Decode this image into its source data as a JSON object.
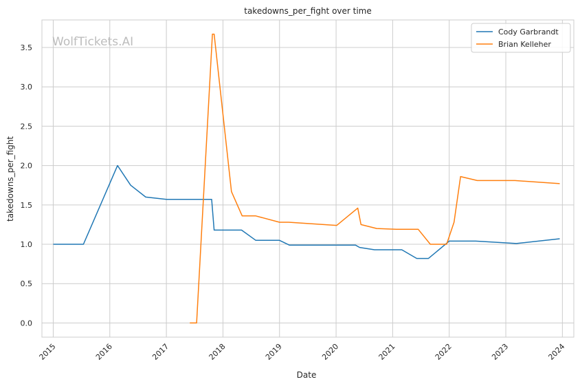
{
  "chart_data": {
    "type": "line",
    "title": "takedowns_per_fight over time",
    "xlabel": "Date",
    "ylabel": "takedowns_per_fight",
    "watermark": "WolfTickets.AI",
    "x_ticks": [
      "2015",
      "2016",
      "2017",
      "2018",
      "2019",
      "2020",
      "2021",
      "2022",
      "2023",
      "2024"
    ],
    "y_ticks": [
      "0.0",
      "0.5",
      "1.0",
      "1.5",
      "2.0",
      "2.5",
      "3.0",
      "3.5"
    ],
    "xlim": [
      "2014-10-20",
      "2024-03-15"
    ],
    "ylim": [
      -0.18,
      3.85
    ],
    "grid": true,
    "legend_position": "top-right",
    "series": [
      {
        "name": "Cody Garbrandt",
        "color": "#1f77b4",
        "points": [
          [
            "2015-01-01",
            1.0
          ],
          [
            "2015-07-15",
            1.0
          ],
          [
            "2016-02-20",
            2.0
          ],
          [
            "2016-05-15",
            1.75
          ],
          [
            "2016-08-20",
            1.6
          ],
          [
            "2017-01-01",
            1.57
          ],
          [
            "2017-10-20",
            1.57
          ],
          [
            "2017-11-05",
            1.18
          ],
          [
            "2018-05-01",
            1.18
          ],
          [
            "2018-08-01",
            1.05
          ],
          [
            "2019-01-01",
            1.05
          ],
          [
            "2019-03-05",
            0.99
          ],
          [
            "2020-05-05",
            0.99
          ],
          [
            "2020-06-01",
            0.96
          ],
          [
            "2020-09-05",
            0.93
          ],
          [
            "2021-03-01",
            0.93
          ],
          [
            "2021-06-05",
            0.82
          ],
          [
            "2021-08-20",
            0.82
          ],
          [
            "2022-01-01",
            1.04
          ],
          [
            "2022-06-20",
            1.04
          ],
          [
            "2023-03-10",
            1.01
          ],
          [
            "2023-12-15",
            1.07
          ]
        ]
      },
      {
        "name": "Brian Kelleher",
        "color": "#ff7f0e",
        "points": [
          [
            "2017-06-01",
            0.0
          ],
          [
            "2017-07-15",
            0.0
          ],
          [
            "2017-10-25",
            3.67
          ],
          [
            "2017-11-05",
            3.67
          ],
          [
            "2018-02-25",
            1.67
          ],
          [
            "2018-05-05",
            1.36
          ],
          [
            "2018-08-01",
            1.36
          ],
          [
            "2019-01-01",
            1.28
          ],
          [
            "2019-03-01",
            1.28
          ],
          [
            "2020-01-05",
            1.24
          ],
          [
            "2020-05-20",
            1.46
          ],
          [
            "2020-06-10",
            1.25
          ],
          [
            "2020-09-20",
            1.2
          ],
          [
            "2021-01-25",
            1.19
          ],
          [
            "2021-06-15",
            1.19
          ],
          [
            "2021-09-01",
            1.0
          ],
          [
            "2021-12-15",
            1.0
          ],
          [
            "2022-02-01",
            1.28
          ],
          [
            "2022-03-15",
            1.86
          ],
          [
            "2022-07-01",
            1.81
          ],
          [
            "2023-03-01",
            1.81
          ],
          [
            "2023-12-15",
            1.77
          ]
        ]
      }
    ]
  }
}
